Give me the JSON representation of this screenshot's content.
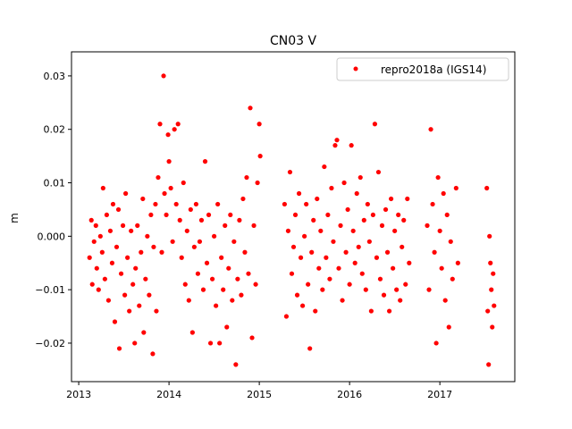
{
  "chart_data": {
    "type": "scatter",
    "title": "CN03 V",
    "xlabel": "",
    "ylabel": "m",
    "xlim": [
      2012.92,
      2017.83
    ],
    "ylim": [
      -0.0272,
      0.0345
    ],
    "xticks": [
      2013,
      2014,
      2015,
      2016,
      2017
    ],
    "xtick_labels": [
      "2013",
      "2014",
      "2015",
      "2016",
      "2017"
    ],
    "yticks": [
      0.03,
      0.02,
      0.01,
      0.0,
      -0.01,
      -0.02
    ],
    "ytick_labels": [
      "0.03",
      "0.02",
      "0.01",
      "0.000",
      "−0.01",
      "−0.02"
    ],
    "grid": false,
    "legend": {
      "placement": "top-right",
      "entries": [
        "repro2018a (IGS14)"
      ]
    },
    "series": [
      {
        "name": "repro2018a (IGS14)",
        "color": "#ff0000",
        "marker": "circle",
        "points": [
          [
            2013.12,
            -0.004
          ],
          [
            2013.14,
            0.003
          ],
          [
            2013.15,
            -0.009
          ],
          [
            2013.17,
            -0.001
          ],
          [
            2013.19,
            0.002
          ],
          [
            2013.2,
            -0.006
          ],
          [
            2013.22,
            -0.01
          ],
          [
            2013.24,
            0.0
          ],
          [
            2013.26,
            -0.003
          ],
          [
            2013.27,
            0.009
          ],
          [
            2013.29,
            -0.008
          ],
          [
            2013.31,
            0.004
          ],
          [
            2013.33,
            -0.012
          ],
          [
            2013.35,
            0.001
          ],
          [
            2013.37,
            -0.005
          ],
          [
            2013.38,
            0.006
          ],
          [
            2013.4,
            -0.016
          ],
          [
            2013.42,
            -0.002
          ],
          [
            2013.44,
            0.005
          ],
          [
            2013.45,
            -0.021
          ],
          [
            2013.47,
            -0.007
          ],
          [
            2013.49,
            0.002
          ],
          [
            2013.51,
            -0.011
          ],
          [
            2013.52,
            0.008
          ],
          [
            2013.54,
            -0.004
          ],
          [
            2013.56,
            -0.014
          ],
          [
            2013.58,
            0.001
          ],
          [
            2013.6,
            -0.009
          ],
          [
            2013.62,
            -0.02
          ],
          [
            2013.63,
            -0.006
          ],
          [
            2013.65,
            0.002
          ],
          [
            2013.67,
            -0.013
          ],
          [
            2013.69,
            -0.003
          ],
          [
            2013.71,
            0.007
          ],
          [
            2013.72,
            -0.018
          ],
          [
            2013.74,
            -0.008
          ],
          [
            2013.76,
            0.0
          ],
          [
            2013.78,
            -0.011
          ],
          [
            2013.8,
            0.004
          ],
          [
            2013.82,
            -0.022
          ],
          [
            2013.83,
            -0.002
          ],
          [
            2013.85,
            0.006
          ],
          [
            2013.86,
            -0.014
          ],
          [
            2013.88,
            0.011
          ],
          [
            2013.9,
            0.021
          ],
          [
            2013.92,
            -0.003
          ],
          [
            2013.94,
            0.03
          ],
          [
            2013.95,
            0.008
          ],
          [
            2013.97,
            0.004
          ],
          [
            2013.99,
            0.019
          ],
          [
            2014.0,
            0.014
          ],
          [
            2014.02,
            0.009
          ],
          [
            2014.04,
            -0.001
          ],
          [
            2014.06,
            0.02
          ],
          [
            2014.08,
            0.006
          ],
          [
            2014.1,
            0.021
          ],
          [
            2014.12,
            0.003
          ],
          [
            2014.14,
            -0.004
          ],
          [
            2014.16,
            0.01
          ],
          [
            2014.18,
            -0.009
          ],
          [
            2014.2,
            0.001
          ],
          [
            2014.22,
            -0.012
          ],
          [
            2014.24,
            0.005
          ],
          [
            2014.26,
            -0.018
          ],
          [
            2014.28,
            -0.002
          ],
          [
            2014.3,
            0.006
          ],
          [
            2014.32,
            -0.007
          ],
          [
            2014.34,
            -0.001
          ],
          [
            2014.36,
            0.003
          ],
          [
            2014.38,
            -0.01
          ],
          [
            2014.4,
            0.014
          ],
          [
            2014.42,
            -0.005
          ],
          [
            2014.44,
            0.004
          ],
          [
            2014.46,
            -0.02
          ],
          [
            2014.48,
            -0.008
          ],
          [
            2014.5,
            0.0
          ],
          [
            2014.52,
            -0.013
          ],
          [
            2014.54,
            0.006
          ],
          [
            2014.56,
            -0.02
          ],
          [
            2014.58,
            -0.004
          ],
          [
            2014.6,
            -0.01
          ],
          [
            2014.62,
            0.002
          ],
          [
            2014.64,
            -0.017
          ],
          [
            2014.66,
            -0.006
          ],
          [
            2014.68,
            0.004
          ],
          [
            2014.7,
            -0.012
          ],
          [
            2014.72,
            -0.001
          ],
          [
            2014.74,
            -0.024
          ],
          [
            2014.76,
            -0.008
          ],
          [
            2014.78,
            0.003
          ],
          [
            2014.8,
            -0.011
          ],
          [
            2014.82,
            0.007
          ],
          [
            2014.84,
            -0.003
          ],
          [
            2014.86,
            0.011
          ],
          [
            2014.88,
            -0.007
          ],
          [
            2014.9,
            0.024
          ],
          [
            2014.92,
            -0.019
          ],
          [
            2014.94,
            0.002
          ],
          [
            2014.96,
            -0.009
          ],
          [
            2014.98,
            0.01
          ],
          [
            2015.0,
            0.021
          ],
          [
            2015.01,
            0.015
          ],
          [
            2015.28,
            0.006
          ],
          [
            2015.3,
            -0.015
          ],
          [
            2015.32,
            0.001
          ],
          [
            2015.34,
            0.012
          ],
          [
            2015.36,
            -0.007
          ],
          [
            2015.38,
            -0.002
          ],
          [
            2015.4,
            0.004
          ],
          [
            2015.42,
            -0.011
          ],
          [
            2015.44,
            0.008
          ],
          [
            2015.46,
            -0.004
          ],
          [
            2015.48,
            -0.013
          ],
          [
            2015.5,
            0.0
          ],
          [
            2015.52,
            0.006
          ],
          [
            2015.54,
            -0.009
          ],
          [
            2015.56,
            -0.021
          ],
          [
            2015.58,
            -0.003
          ],
          [
            2015.6,
            0.003
          ],
          [
            2015.62,
            -0.014
          ],
          [
            2015.64,
            0.007
          ],
          [
            2015.66,
            -0.006
          ],
          [
            2015.68,
            0.001
          ],
          [
            2015.7,
            -0.01
          ],
          [
            2015.72,
            0.013
          ],
          [
            2015.74,
            -0.004
          ],
          [
            2015.76,
            0.004
          ],
          [
            2015.78,
            -0.008
          ],
          [
            2015.8,
            0.009
          ],
          [
            2015.82,
            -0.001
          ],
          [
            2015.84,
            0.017
          ],
          [
            2015.86,
            0.018
          ],
          [
            2015.88,
            -0.006
          ],
          [
            2015.9,
            0.002
          ],
          [
            2015.92,
            -0.012
          ],
          [
            2015.94,
            0.01
          ],
          [
            2015.96,
            -0.003
          ],
          [
            2015.98,
            0.005
          ],
          [
            2016.0,
            -0.009
          ],
          [
            2016.02,
            0.017
          ],
          [
            2016.04,
            0.001
          ],
          [
            2016.06,
            -0.005
          ],
          [
            2016.08,
            0.008
          ],
          [
            2016.1,
            -0.002
          ],
          [
            2016.12,
            0.011
          ],
          [
            2016.14,
            -0.007
          ],
          [
            2016.16,
            0.003
          ],
          [
            2016.18,
            -0.01
          ],
          [
            2016.2,
            0.006
          ],
          [
            2016.22,
            -0.001
          ],
          [
            2016.24,
            -0.014
          ],
          [
            2016.26,
            0.004
          ],
          [
            2016.28,
            0.021
          ],
          [
            2016.3,
            -0.004
          ],
          [
            2016.32,
            0.012
          ],
          [
            2016.34,
            -0.008
          ],
          [
            2016.36,
            0.002
          ],
          [
            2016.38,
            -0.011
          ],
          [
            2016.4,
            0.005
          ],
          [
            2016.42,
            -0.003
          ],
          [
            2016.44,
            -0.014
          ],
          [
            2016.46,
            0.007
          ],
          [
            2016.48,
            -0.006
          ],
          [
            2016.5,
            0.001
          ],
          [
            2016.52,
            -0.01
          ],
          [
            2016.54,
            0.004
          ],
          [
            2016.56,
            -0.012
          ],
          [
            2016.58,
            -0.002
          ],
          [
            2016.6,
            0.003
          ],
          [
            2016.62,
            -0.009
          ],
          [
            2016.64,
            0.007
          ],
          [
            2016.66,
            -0.005
          ],
          [
            2016.86,
            0.002
          ],
          [
            2016.88,
            -0.01
          ],
          [
            2016.9,
            0.02
          ],
          [
            2016.92,
            0.006
          ],
          [
            2016.94,
            -0.003
          ],
          [
            2016.96,
            -0.02
          ],
          [
            2016.98,
            0.011
          ],
          [
            2017.0,
            0.001
          ],
          [
            2017.02,
            -0.006
          ],
          [
            2017.04,
            0.008
          ],
          [
            2017.06,
            -0.012
          ],
          [
            2017.08,
            0.004
          ],
          [
            2017.1,
            -0.017
          ],
          [
            2017.12,
            -0.001
          ],
          [
            2017.14,
            -0.008
          ],
          [
            2017.18,
            0.009
          ],
          [
            2017.2,
            -0.005
          ],
          [
            2017.52,
            0.009
          ],
          [
            2017.53,
            -0.014
          ],
          [
            2017.54,
            -0.024
          ],
          [
            2017.55,
            0.0
          ],
          [
            2017.56,
            -0.005
          ],
          [
            2017.57,
            -0.01
          ],
          [
            2017.58,
            -0.017
          ],
          [
            2017.59,
            -0.007
          ],
          [
            2017.6,
            -0.013
          ]
        ]
      }
    ]
  }
}
